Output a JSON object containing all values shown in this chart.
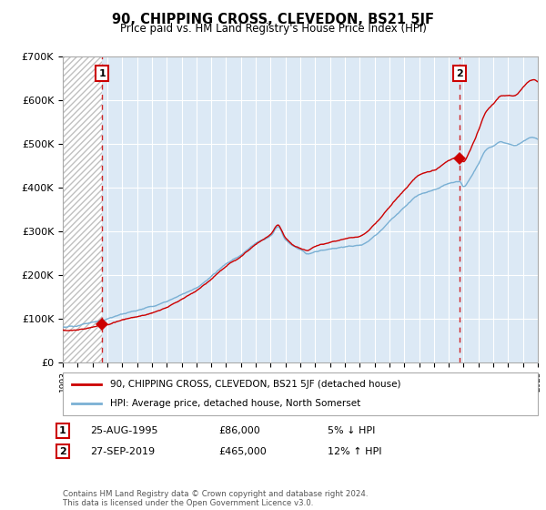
{
  "title": "90, CHIPPING CROSS, CLEVEDON, BS21 5JF",
  "subtitle": "Price paid vs. HM Land Registry's House Price Index (HPI)",
  "legend_line1": "90, CHIPPING CROSS, CLEVEDON, BS21 5JF (detached house)",
  "legend_line2": "HPI: Average price, detached house, North Somerset",
  "footer": "Contains HM Land Registry data © Crown copyright and database right 2024.\nThis data is licensed under the Open Government Licence v3.0.",
  "sale1_date": "25-AUG-1995",
  "sale1_price": "£86,000",
  "sale1_hpi": "5% ↓ HPI",
  "sale2_date": "27-SEP-2019",
  "sale2_price": "£465,000",
  "sale2_hpi": "12% ↑ HPI",
  "sale1_year": 1995.64,
  "sale1_value": 86000,
  "sale2_year": 2019.74,
  "sale2_value": 465000,
  "ylim": [
    0,
    700000
  ],
  "xlim_start": 1993,
  "xlim_end": 2025,
  "red_line_color": "#cc0000",
  "blue_line_color": "#7ab0d4",
  "plot_bg_color": "#dce9f5",
  "background_color": "#ffffff",
  "grid_color": "#ffffff",
  "dashed_line_color": "#cc0000",
  "hatch_color": "#c0c0c0",
  "ytick_labels": [
    "£0",
    "£100K",
    "£200K",
    "£300K",
    "£400K",
    "£500K",
    "£600K",
    "£700K"
  ],
  "ytick_values": [
    0,
    100000,
    200000,
    300000,
    400000,
    500000,
    600000,
    700000
  ]
}
